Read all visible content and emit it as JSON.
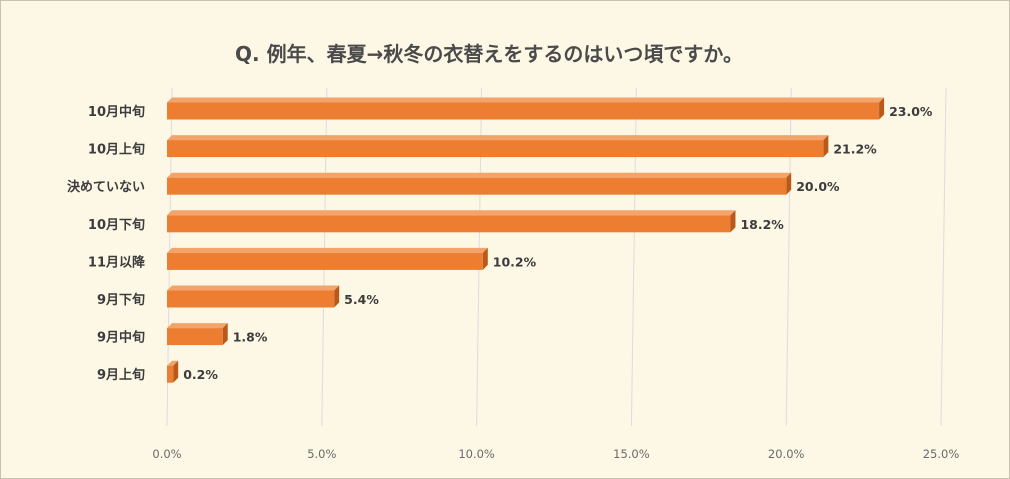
{
  "chart_data": {
    "type": "bar",
    "orientation": "horizontal",
    "title": "Q. 例年、春夏→秋冬の衣替えをするのはいつ頃ですか。",
    "categories": [
      "10月中旬",
      "10月上旬",
      "決めていない",
      "10月下旬",
      "11月以降",
      "9月下旬",
      "9月中旬",
      "9月上旬"
    ],
    "values": [
      23.0,
      21.2,
      20.0,
      18.2,
      10.2,
      5.4,
      1.8,
      0.2
    ],
    "value_labels": [
      "23.0%",
      "21.2%",
      "20.0%",
      "18.2%",
      "10.2%",
      "5.4%",
      "1.8%",
      "0.2%"
    ],
    "xlim": [
      0,
      25
    ],
    "x_ticks": [
      0,
      5,
      10,
      15,
      20,
      25
    ],
    "x_tick_labels": [
      "0.0%",
      "5.0%",
      "10.0%",
      "15.0%",
      "20.0%",
      "25.0%"
    ],
    "grid": "vertical",
    "bar_color": "#ed7d31",
    "bar_side_color": "#b85a1a",
    "background_color": "#fdf7e6"
  }
}
